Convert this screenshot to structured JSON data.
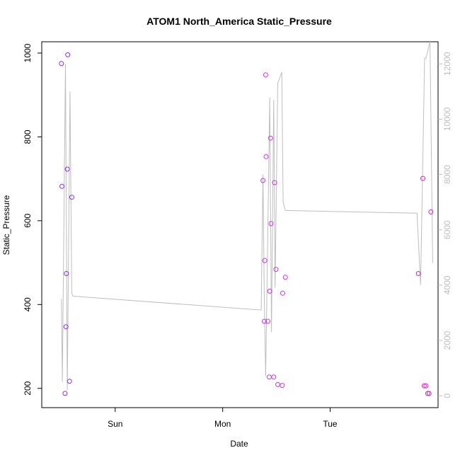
{
  "chart_data": {
    "type": "scatter",
    "title": "ATOM1 North_America Static_Pressure",
    "xlabel": "Date",
    "ylabel": "Static_Pressure",
    "x_unit": "hours",
    "xlim": [
      -4.4,
      84.1
    ],
    "ylim": [
      154,
      1027
    ],
    "x_ticks": [
      {
        "value": 12,
        "label": "Sun"
      },
      {
        "value": 36,
        "label": "Mon"
      },
      {
        "value": 60,
        "label": "Tue"
      }
    ],
    "y_ticks": [
      200,
      400,
      600,
      800,
      1000
    ],
    "secondary_axis": {
      "ylim": [
        -430,
        12800
      ],
      "ticks": [
        0,
        2000,
        4000,
        6000,
        8000,
        10000,
        12000
      ],
      "color": "#bebebe"
    },
    "points": [
      {
        "x": 0.0,
        "y": 975,
        "color": "#8a2be2"
      },
      {
        "x": 0.1,
        "y": 682,
        "color": "#8a2be2"
      },
      {
        "x": 0.8,
        "y": 188,
        "color": "#8a2be2"
      },
      {
        "x": 1.0,
        "y": 347,
        "color": "#8a2be2"
      },
      {
        "x": 1.1,
        "y": 474,
        "color": "#8a2be2"
      },
      {
        "x": 1.3,
        "y": 723,
        "color": "#8a2be2"
      },
      {
        "x": 1.4,
        "y": 996,
        "color": "#8a2be2"
      },
      {
        "x": 1.8,
        "y": 217,
        "color": "#8a2be2"
      },
      {
        "x": 2.3,
        "y": 656,
        "color": "#8a2be2"
      },
      {
        "x": 45.0,
        "y": 696,
        "color": "#cc33ee"
      },
      {
        "x": 45.3,
        "y": 360,
        "color": "#cc33ee"
      },
      {
        "x": 45.4,
        "y": 505,
        "color": "#cc33ee"
      },
      {
        "x": 45.6,
        "y": 948,
        "color": "#cc33ee"
      },
      {
        "x": 45.7,
        "y": 753,
        "color": "#cc33ee"
      },
      {
        "x": 46.1,
        "y": 360,
        "color": "#cc33ee"
      },
      {
        "x": 46.4,
        "y": 227,
        "color": "#cc33ee"
      },
      {
        "x": 46.5,
        "y": 432,
        "color": "#cc33ee"
      },
      {
        "x": 46.7,
        "y": 797,
        "color": "#cc33ee"
      },
      {
        "x": 46.8,
        "y": 593,
        "color": "#cc33ee"
      },
      {
        "x": 47.4,
        "y": 227,
        "color": "#cc33ee"
      },
      {
        "x": 47.6,
        "y": 691,
        "color": "#cc33ee"
      },
      {
        "x": 47.9,
        "y": 484,
        "color": "#cc33ee"
      },
      {
        "x": 48.3,
        "y": 209,
        "color": "#cc33ee"
      },
      {
        "x": 49.3,
        "y": 207,
        "color": "#cc33ee"
      },
      {
        "x": 49.4,
        "y": 427,
        "color": "#cc33ee"
      },
      {
        "x": 50.0,
        "y": 465,
        "color": "#cc33ee"
      },
      {
        "x": 79.7,
        "y": 474,
        "color": "#e020d0"
      },
      {
        "x": 80.7,
        "y": 701,
        "color": "#e020d0"
      },
      {
        "x": 81.0,
        "y": 206,
        "color": "#e020d0"
      },
      {
        "x": 81.4,
        "y": 206,
        "color": "#e020d0"
      },
      {
        "x": 81.8,
        "y": 188,
        "color": "#e020d0"
      },
      {
        "x": 82.1,
        "y": 188,
        "color": "#e020d0"
      },
      {
        "x": 82.5,
        "y": 621,
        "color": "#e020d0"
      }
    ],
    "line": {
      "color": "#bebebe",
      "axis": "secondary",
      "points": [
        {
          "x": 0.0,
          "y": 3500
        },
        {
          "x": 0.2,
          "y": 500
        },
        {
          "x": 0.9,
          "y": 12000
        },
        {
          "x": 1.3,
          "y": 200
        },
        {
          "x": 1.9,
          "y": 11000
        },
        {
          "x": 2.3,
          "y": 3700
        },
        {
          "x": 2.6,
          "y": 3600
        },
        {
          "x": 44.6,
          "y": 3100
        },
        {
          "x": 45.0,
          "y": 8000
        },
        {
          "x": 45.3,
          "y": 3400
        },
        {
          "x": 45.6,
          "y": 700
        },
        {
          "x": 46.0,
          "y": 5000
        },
        {
          "x": 46.5,
          "y": 10800
        },
        {
          "x": 46.9,
          "y": 2300
        },
        {
          "x": 47.4,
          "y": 10700
        },
        {
          "x": 47.7,
          "y": 3900
        },
        {
          "x": 48.3,
          "y": 11300
        },
        {
          "x": 49.2,
          "y": 11700
        },
        {
          "x": 49.5,
          "y": 7000
        },
        {
          "x": 50.0,
          "y": 6700
        },
        {
          "x": 79.4,
          "y": 6600
        },
        {
          "x": 80.2,
          "y": 4000
        },
        {
          "x": 81.1,
          "y": 12200
        },
        {
          "x": 81.4,
          "y": 12200
        },
        {
          "x": 82.3,
          "y": 12800
        },
        {
          "x": 82.9,
          "y": 4800
        }
      ]
    }
  }
}
